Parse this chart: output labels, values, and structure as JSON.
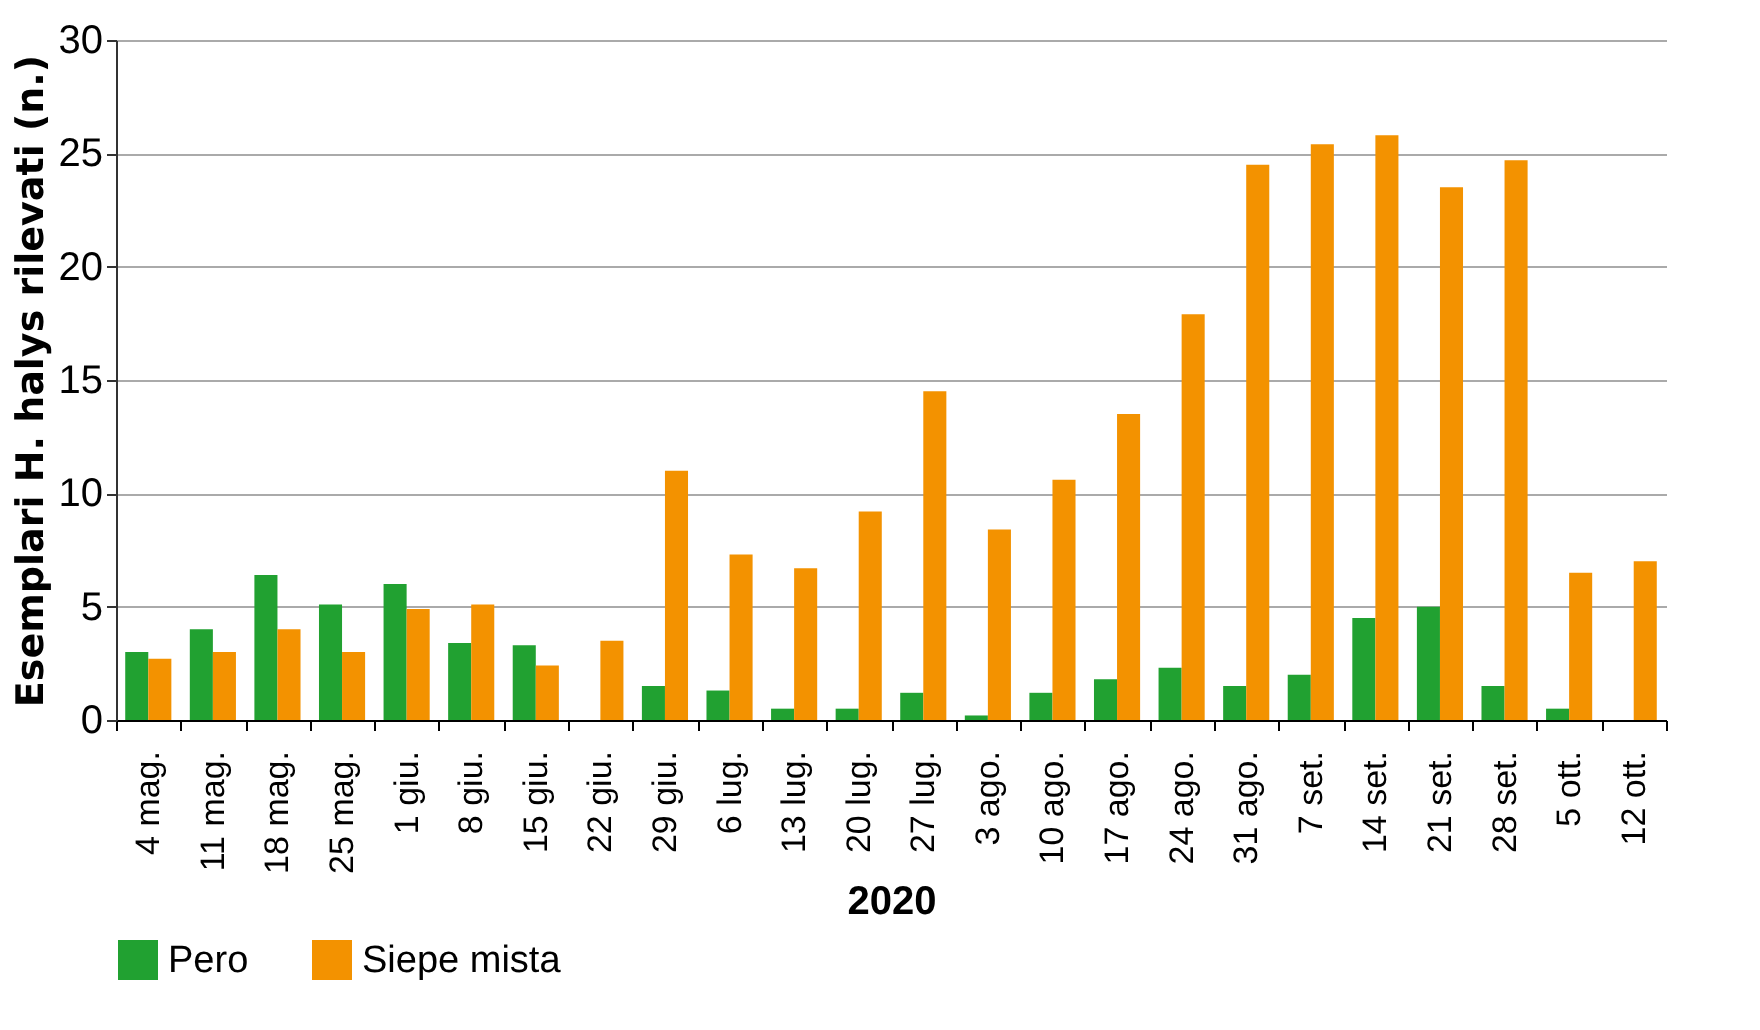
{
  "chart_data": {
    "type": "bar",
    "xlabel": "2020",
    "ylabel": "Esemplari H. halys rilevati (n.)",
    "categories": [
      "4 mag.",
      "11 mag.",
      "18 mag.",
      "25 mag.",
      "1 giu.",
      "8 giu.",
      "15 giu.",
      "22 giu.",
      "29 giu.",
      "6 lug.",
      "13 lug.",
      "20 lug.",
      "27 lug.",
      "3 ago.",
      "10 ago.",
      "17 ago.",
      "24 ago.",
      "31 ago.",
      "7 set.",
      "14 set.",
      "21 set.",
      "28 set.",
      "5 ott.",
      "12 ott."
    ],
    "series": [
      {
        "name": "Pero",
        "color": "#21a131",
        "values": [
          3.0,
          4.0,
          6.4,
          5.1,
          6.0,
          3.4,
          3.3,
          null,
          1.5,
          1.3,
          0.5,
          0.5,
          1.2,
          0.2,
          1.2,
          1.8,
          2.3,
          1.5,
          2.0,
          4.5,
          5.0,
          1.5,
          0.5,
          null
        ]
      },
      {
        "name": "Siepe mista",
        "color": "#f39200",
        "values": [
          2.7,
          3.0,
          4.0,
          3.0,
          4.9,
          5.1,
          2.4,
          3.5,
          11.0,
          7.3,
          6.7,
          9.2,
          14.5,
          8.4,
          10.6,
          13.5,
          17.9,
          24.5,
          25.4,
          25.8,
          23.5,
          24.7,
          6.5,
          7.0
        ]
      }
    ],
    "ylim": [
      0,
      30
    ],
    "yticks": [
      0,
      5,
      10,
      15,
      20,
      25,
      30
    ],
    "grid": "y",
    "legend": "bottom"
  }
}
